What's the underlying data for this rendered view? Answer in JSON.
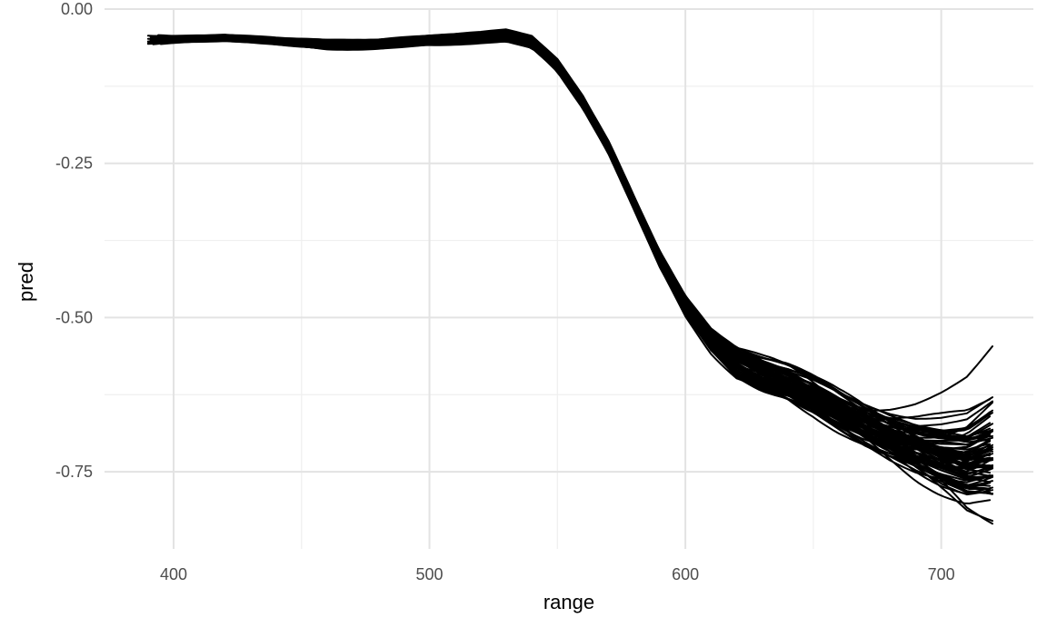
{
  "chart_data": {
    "type": "line",
    "xlabel": "range",
    "ylabel": "pred",
    "xlim": [
      373,
      736
    ],
    "ylim": [
      -0.875,
      0.0
    ],
    "x_ticks": [
      400,
      500,
      600,
      700
    ],
    "x_tick_labels": [
      "400",
      "500",
      "600",
      "700"
    ],
    "y_ticks": [
      0.0,
      -0.25,
      -0.5,
      -0.75
    ],
    "y_tick_labels": [
      "0.00",
      "-0.25",
      "-0.50",
      "-0.75"
    ],
    "grid": true,
    "legend": "none",
    "line_color": "#000000",
    "series_count": 80,
    "x": [
      390,
      400,
      420,
      440,
      460,
      480,
      500,
      520,
      530,
      540,
      550,
      560,
      570,
      580,
      590,
      600,
      610,
      620,
      630,
      640,
      650,
      660,
      670,
      680,
      690,
      700,
      710,
      720
    ],
    "center_values": [
      -0.05,
      -0.049,
      -0.046,
      -0.052,
      -0.057,
      -0.056,
      -0.051,
      -0.046,
      -0.043,
      -0.053,
      -0.09,
      -0.15,
      -0.225,
      -0.315,
      -0.405,
      -0.48,
      -0.535,
      -0.57,
      -0.59,
      -0.605,
      -0.625,
      -0.65,
      -0.672,
      -0.69,
      -0.705,
      -0.715,
      -0.722,
      -0.71
    ],
    "band_width": [
      0.01,
      0.008,
      0.008,
      0.008,
      0.01,
      0.01,
      0.01,
      0.01,
      0.012,
      0.014,
      0.016,
      0.016,
      0.016,
      0.016,
      0.018,
      0.02,
      0.024,
      0.032,
      0.036,
      0.038,
      0.04,
      0.042,
      0.045,
      0.048,
      0.052,
      0.056,
      0.06,
      0.065
    ]
  }
}
